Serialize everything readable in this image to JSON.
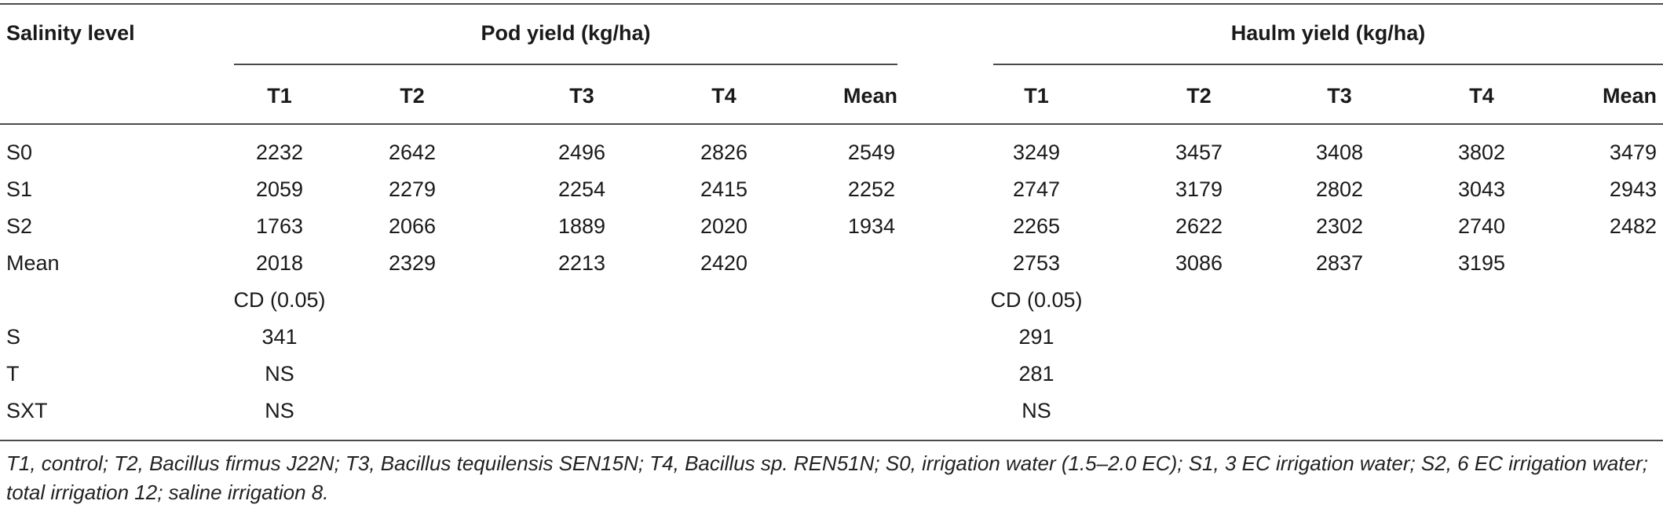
{
  "table": {
    "corner_label": "Salinity level",
    "groups": [
      {
        "label": "Pod yield (kg/ha)"
      },
      {
        "label": "Haulm yield (kg/ha)"
      }
    ],
    "subheaders": [
      "T1",
      "T2",
      "T3",
      "T4",
      "Mean"
    ],
    "rows": [
      {
        "label": "S0",
        "pod": [
          "2232",
          "2642",
          "2496",
          "2826",
          "2549"
        ],
        "haulm": [
          "3249",
          "3457",
          "3408",
          "3802",
          "3479"
        ]
      },
      {
        "label": "S1",
        "pod": [
          "2059",
          "2279",
          "2254",
          "2415",
          "2252"
        ],
        "haulm": [
          "2747",
          "3179",
          "2802",
          "3043",
          "2943"
        ]
      },
      {
        "label": "S2",
        "pod": [
          "1763",
          "2066",
          "1889",
          "2020",
          "1934"
        ],
        "haulm": [
          "2265",
          "2622",
          "2302",
          "2740",
          "2482"
        ]
      },
      {
        "label": "Mean",
        "pod": [
          "2018",
          "2329",
          "2213",
          "2420",
          ""
        ],
        "haulm": [
          "2753",
          "3086",
          "2837",
          "3195",
          ""
        ]
      }
    ],
    "cd_label": "CD (0.05)",
    "cd_rows": [
      {
        "label": "S",
        "pod": "341",
        "haulm": "291"
      },
      {
        "label": "T",
        "pod": "NS",
        "haulm": "281"
      },
      {
        "label": "SXT",
        "pod": "NS",
        "haulm": "NS"
      }
    ]
  },
  "footnote": "T1, control; T2, Bacillus firmus J22N; T3, Bacillus tequilensis SEN15N; T4, Bacillus sp. REN51N; S0, irrigation water (1.5–2.0 EC); S1, 3 EC irrigation water; S2, 6 EC irrigation water; total irrigation 12; saline irrigation 8."
}
